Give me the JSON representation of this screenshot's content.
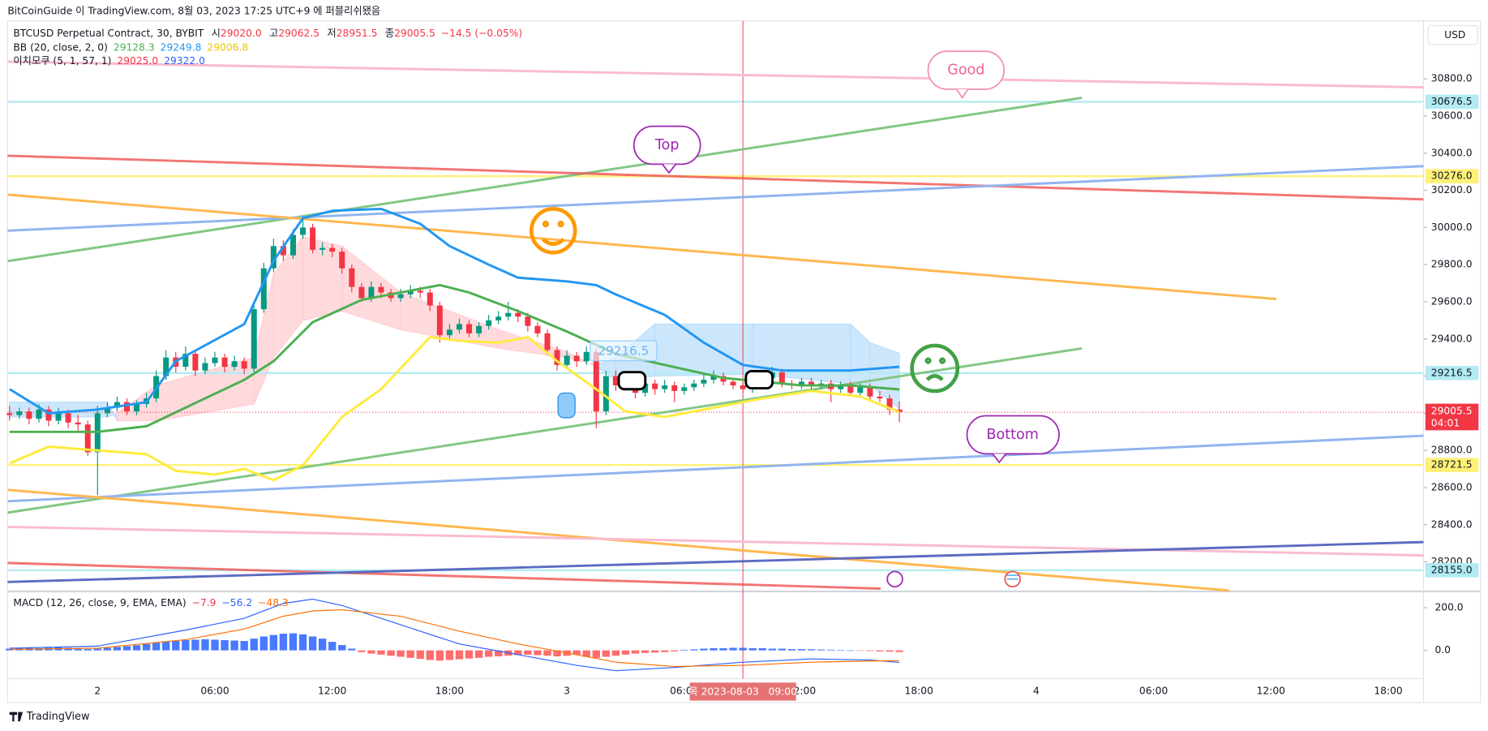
{
  "header": "BitCoinGuide 이 TradingView.com, 8월 03, 2023 17:25 UTC+9 에 퍼블리쉬됐음",
  "currency_button": "USD",
  "branding": "TradingView",
  "annotations": [
    "Good",
    "Top",
    "Bottom",
    "29216.5"
  ],
  "chart_data": {
    "type": "candlestick",
    "symbol": "BTCUSD Perpetual Contract, 30, BYBIT",
    "ohlc_legend": [
      {
        "label": "시",
        "value": "29020.0"
      },
      {
        "label": "고",
        "value": "29062.5"
      },
      {
        "label": "저",
        "value": "28951.5"
      },
      {
        "label": "종",
        "value": "29005.5"
      }
    ],
    "change": "−14.5 (−0.05%)",
    "up_color": "#089981",
    "down_color": "#f23645",
    "xlim": [
      -0.2,
      144.6
    ],
    "xticks": [
      {
        "value": 9,
        "label": "2"
      },
      {
        "value": 21,
        "label": "06:00"
      },
      {
        "value": 33,
        "label": "12:00"
      },
      {
        "value": 45,
        "label": "18:00"
      },
      {
        "value": 57,
        "label": "3"
      },
      {
        "value": 69,
        "label": "06:00"
      },
      {
        "value": 81,
        "label": "12:00"
      },
      {
        "value": 93,
        "label": "18:00"
      },
      {
        "value": 105,
        "label": "4"
      },
      {
        "value": 117,
        "label": "06:00"
      },
      {
        "value": 129,
        "label": "12:00"
      },
      {
        "value": 141,
        "label": "18:00"
      }
    ],
    "ylim": [
      28046,
      31112
    ],
    "yticks": [
      {
        "value": 30800,
        "label": "30800.0"
      },
      {
        "value": 30600,
        "label": "30600.0"
      },
      {
        "value": 30400,
        "label": "30400.0"
      },
      {
        "value": 30200,
        "label": "30200.0"
      },
      {
        "value": 30000,
        "label": "30000.0"
      },
      {
        "value": 29800,
        "label": "29800.0"
      },
      {
        "value": 29600,
        "label": "29600.0"
      },
      {
        "value": 29400,
        "label": "29400.0"
      },
      {
        "value": 29200,
        "label": "29200.0"
      },
      {
        "value": 29000,
        "label": "29000.0"
      },
      {
        "value": 28800,
        "label": "28800.0"
      },
      {
        "value": 28600,
        "label": "28600.0"
      },
      {
        "value": 28400,
        "label": "28400.0"
      },
      {
        "value": 28200,
        "label": "28200.0"
      }
    ],
    "candles": [
      {
        "o": 29000,
        "h": 29040,
        "l": 28960,
        "c": 28990
      },
      {
        "o": 28990,
        "h": 29030,
        "l": 28970,
        "c": 29010
      },
      {
        "o": 29010,
        "h": 29030,
        "l": 28940,
        "c": 28970
      },
      {
        "o": 28970,
        "h": 29050,
        "l": 28950,
        "c": 29020
      },
      {
        "o": 29020,
        "h": 29040,
        "l": 28930,
        "c": 28960
      },
      {
        "o": 28960,
        "h": 29030,
        "l": 28940,
        "c": 29000
      },
      {
        "o": 29000,
        "h": 29020,
        "l": 28920,
        "c": 28950
      },
      {
        "o": 28950,
        "h": 28990,
        "l": 28900,
        "c": 28940
      },
      {
        "o": 28940,
        "h": 28960,
        "l": 28770,
        "c": 28790
      },
      {
        "o": 28790,
        "h": 29040,
        "l": 28560,
        "c": 29000
      },
      {
        "o": 29000,
        "h": 29060,
        "l": 28980,
        "c": 29030
      },
      {
        "o": 29030,
        "h": 29090,
        "l": 29010,
        "c": 29060
      },
      {
        "o": 29060,
        "h": 29080,
        "l": 28990,
        "c": 29010
      },
      {
        "o": 29010,
        "h": 29070,
        "l": 28990,
        "c": 29050
      },
      {
        "o": 29050,
        "h": 29110,
        "l": 29030,
        "c": 29080
      },
      {
        "o": 29080,
        "h": 29230,
        "l": 29060,
        "c": 29200
      },
      {
        "o": 29200,
        "h": 29340,
        "l": 29180,
        "c": 29300
      },
      {
        "o": 29300,
        "h": 29330,
        "l": 29220,
        "c": 29250
      },
      {
        "o": 29250,
        "h": 29360,
        "l": 29230,
        "c": 29320
      },
      {
        "o": 29320,
        "h": 29340,
        "l": 29200,
        "c": 29230
      },
      {
        "o": 29230,
        "h": 29300,
        "l": 29210,
        "c": 29270
      },
      {
        "o": 29270,
        "h": 29330,
        "l": 29250,
        "c": 29300
      },
      {
        "o": 29300,
        "h": 29320,
        "l": 29220,
        "c": 29250
      },
      {
        "o": 29250,
        "h": 29310,
        "l": 29230,
        "c": 29280
      },
      {
        "o": 29280,
        "h": 29300,
        "l": 29210,
        "c": 29240
      },
      {
        "o": 29240,
        "h": 29590,
        "l": 29220,
        "c": 29560
      },
      {
        "o": 29560,
        "h": 29810,
        "l": 29540,
        "c": 29780
      },
      {
        "o": 29780,
        "h": 29940,
        "l": 29760,
        "c": 29900
      },
      {
        "o": 29900,
        "h": 29930,
        "l": 29820,
        "c": 29850
      },
      {
        "o": 29850,
        "h": 29990,
        "l": 29830,
        "c": 29960
      },
      {
        "o": 29960,
        "h": 30060,
        "l": 29940,
        "c": 30000
      },
      {
        "o": 30000,
        "h": 30020,
        "l": 29860,
        "c": 29880
      },
      {
        "o": 29880,
        "h": 29920,
        "l": 29850,
        "c": 29890
      },
      {
        "o": 29890,
        "h": 29910,
        "l": 29840,
        "c": 29870
      },
      {
        "o": 29870,
        "h": 29890,
        "l": 29750,
        "c": 29780
      },
      {
        "o": 29780,
        "h": 29800,
        "l": 29650,
        "c": 29680
      },
      {
        "o": 29680,
        "h": 29700,
        "l": 29600,
        "c": 29620
      },
      {
        "o": 29620,
        "h": 29710,
        "l": 29600,
        "c": 29680
      },
      {
        "o": 29680,
        "h": 29700,
        "l": 29620,
        "c": 29650
      },
      {
        "o": 29650,
        "h": 29670,
        "l": 29600,
        "c": 29620
      },
      {
        "o": 29620,
        "h": 29670,
        "l": 29600,
        "c": 29640
      },
      {
        "o": 29640,
        "h": 29690,
        "l": 29620,
        "c": 29660
      },
      {
        "o": 29660,
        "h": 29680,
        "l": 29620,
        "c": 29650
      },
      {
        "o": 29650,
        "h": 29670,
        "l": 29550,
        "c": 29580
      },
      {
        "o": 29580,
        "h": 29600,
        "l": 29380,
        "c": 29420
      },
      {
        "o": 29420,
        "h": 29480,
        "l": 29400,
        "c": 29450
      },
      {
        "o": 29450,
        "h": 29510,
        "l": 29430,
        "c": 29480
      },
      {
        "o": 29480,
        "h": 29500,
        "l": 29410,
        "c": 29430
      },
      {
        "o": 29430,
        "h": 29490,
        "l": 29410,
        "c": 29470
      },
      {
        "o": 29470,
        "h": 29530,
        "l": 29450,
        "c": 29500
      },
      {
        "o": 29500,
        "h": 29550,
        "l": 29480,
        "c": 29520
      },
      {
        "o": 29520,
        "h": 29600,
        "l": 29500,
        "c": 29540
      },
      {
        "o": 29540,
        "h": 29560,
        "l": 29490,
        "c": 29520
      },
      {
        "o": 29520,
        "h": 29540,
        "l": 29440,
        "c": 29470
      },
      {
        "o": 29470,
        "h": 29490,
        "l": 29410,
        "c": 29430
      },
      {
        "o": 29430,
        "h": 29450,
        "l": 29310,
        "c": 29340
      },
      {
        "o": 29340,
        "h": 29360,
        "l": 29230,
        "c": 29260
      },
      {
        "o": 29260,
        "h": 29340,
        "l": 29240,
        "c": 29310
      },
      {
        "o": 29310,
        "h": 29330,
        "l": 29250,
        "c": 29280
      },
      {
        "o": 29280,
        "h": 29360,
        "l": 29260,
        "c": 29330
      },
      {
        "o": 29330,
        "h": 29350,
        "l": 28920,
        "c": 29010
      },
      {
        "o": 29010,
        "h": 29230,
        "l": 28990,
        "c": 29200
      },
      {
        "o": 29200,
        "h": 29230,
        "l": 29120,
        "c": 29150
      },
      {
        "o": 29150,
        "h": 29220,
        "l": 29130,
        "c": 29190
      },
      {
        "o": 29190,
        "h": 29210,
        "l": 29080,
        "c": 29110
      },
      {
        "o": 29110,
        "h": 29190,
        "l": 29090,
        "c": 29160
      },
      {
        "o": 29160,
        "h": 29180,
        "l": 29100,
        "c": 29130
      },
      {
        "o": 29130,
        "h": 29180,
        "l": 29110,
        "c": 29150
      },
      {
        "o": 29150,
        "h": 29170,
        "l": 29060,
        "c": 29120
      },
      {
        "o": 29120,
        "h": 29160,
        "l": 29100,
        "c": 29140
      },
      {
        "o": 29140,
        "h": 29180,
        "l": 29120,
        "c": 29160
      },
      {
        "o": 29160,
        "h": 29210,
        "l": 29140,
        "c": 29180
      },
      {
        "o": 29180,
        "h": 29230,
        "l": 29160,
        "c": 29200
      },
      {
        "o": 29200,
        "h": 29220,
        "l": 29150,
        "c": 29170
      },
      {
        "o": 29170,
        "h": 29190,
        "l": 29130,
        "c": 29150
      },
      {
        "o": 29150,
        "h": 29170,
        "l": 29110,
        "c": 29130
      },
      {
        "o": 29130,
        "h": 29180,
        "l": 29110,
        "c": 29160
      },
      {
        "o": 29160,
        "h": 29220,
        "l": 29140,
        "c": 29190
      },
      {
        "o": 29190,
        "h": 29250,
        "l": 29170,
        "c": 29220
      },
      {
        "o": 29220,
        "h": 29240,
        "l": 29140,
        "c": 29160
      },
      {
        "o": 29160,
        "h": 29180,
        "l": 29130,
        "c": 29150
      },
      {
        "o": 29150,
        "h": 29190,
        "l": 29130,
        "c": 29170
      },
      {
        "o": 29170,
        "h": 29190,
        "l": 29130,
        "c": 29150
      },
      {
        "o": 29150,
        "h": 29180,
        "l": 29130,
        "c": 29160
      },
      {
        "o": 29160,
        "h": 29180,
        "l": 29060,
        "c": 29130
      },
      {
        "o": 29130,
        "h": 29170,
        "l": 29110,
        "c": 29150
      },
      {
        "o": 29150,
        "h": 29170,
        "l": 29090,
        "c": 29110
      },
      {
        "o": 29110,
        "h": 29160,
        "l": 29090,
        "c": 29140
      },
      {
        "o": 29140,
        "h": 29160,
        "l": 29070,
        "c": 29090
      },
      {
        "o": 29090,
        "h": 29120,
        "l": 29060,
        "c": 29080
      },
      {
        "o": 29080,
        "h": 29100,
        "l": 28990,
        "c": 29020
      },
      {
        "o": 29020,
        "h": 29062.5,
        "l": 28951.5,
        "c": 29005.5
      }
    ],
    "bb_legend": {
      "title": "BB (20, close, 2, 0)",
      "readings": [
        {
          "text": "29128.3",
          "color": "#4caf50"
        },
        {
          "text": "29249.8",
          "color": "#2196f3"
        },
        {
          "text": "29006.8",
          "color": "#e6c700"
        }
      ]
    },
    "ichimoku_legend": {
      "title": "이치모쿠 (5, 1, 57, 1)",
      "readings": [
        {
          "text": "29025.0",
          "color": "#f23645"
        },
        {
          "text": "29322.0",
          "color": "#2962ff"
        }
      ]
    },
    "ichimoku": {
      "up_color": "#bbdefb",
      "down_color": "#ffcdd2",
      "x": [
        0,
        10,
        11,
        15,
        25,
        27,
        30,
        34,
        40,
        50,
        57,
        60,
        62,
        66,
        76,
        86,
        88,
        91
      ],
      "span_a": [
        29060,
        29060,
        28960,
        28960,
        29050,
        29300,
        29500,
        29550,
        29450,
        29350,
        29300,
        29260,
        29300,
        29480,
        29480,
        29480,
        29380,
        29322
      ],
      "span_b": [
        28980,
        28980,
        29000,
        29150,
        29300,
        29750,
        29950,
        29900,
        29650,
        29450,
        29330,
        29250,
        29180,
        29200,
        29210,
        29160,
        29150,
        29025
      ]
    },
    "overlays": [
      {
        "color": "#2196f3",
        "x": [
          0,
          4,
          9,
          14,
          17,
          24,
          27,
          30,
          33,
          38,
          42,
          45,
          49,
          52,
          57,
          60,
          62,
          67,
          71,
          75,
          79,
          86,
          91
        ],
        "values": [
          29130,
          29000,
          29020,
          29060,
          29280,
          29480,
          29820,
          30050,
          30090,
          30100,
          30020,
          29900,
          29800,
          29730,
          29710,
          29690,
          29640,
          29530,
          29380,
          29260,
          29230,
          29230,
          29249.8
        ]
      },
      {
        "color": "#4caf50",
        "x": [
          0,
          9,
          14,
          18,
          24,
          27,
          31,
          36,
          42,
          44,
          47,
          52,
          57,
          62,
          67,
          73,
          77,
          81,
          86,
          91
        ],
        "values": [
          28900,
          28900,
          28930,
          29030,
          29180,
          29280,
          29490,
          29610,
          29670,
          29690,
          29650,
          29550,
          29440,
          29320,
          29260,
          29190,
          29170,
          29150,
          29150,
          29128.3
        ]
      },
      {
        "color": "#ffeb3b",
        "x": [
          0,
          4,
          9,
          14,
          17,
          21,
          24,
          27,
          30,
          34,
          38,
          43,
          46,
          50,
          53,
          56,
          60,
          63,
          67,
          71,
          77,
          82,
          87,
          91
        ],
        "values": [
          28730,
          28820,
          28800,
          28780,
          28690,
          28670,
          28700,
          28640,
          28720,
          28980,
          29130,
          29410,
          29390,
          29380,
          29410,
          29280,
          29130,
          29010,
          28980,
          29020,
          29080,
          29120,
          29090,
          29006.8
        ]
      }
    ],
    "levels": [
      {
        "value": 30676.5,
        "label": "30676.5",
        "color": "#b2ebf2"
      },
      {
        "value": 30276,
        "label": "30276.0",
        "color": "#fff176"
      },
      {
        "value": 29216.5,
        "label": "29216.5",
        "color": "#b2ebf2"
      },
      {
        "value": 28721.5,
        "label": "28721.5",
        "color": "#fff176"
      },
      {
        "value": 28155,
        "label": "28155.0",
        "color": "#b2ebf2"
      }
    ],
    "last_price": {
      "value": 29005.5,
      "label": "29005.5",
      "countdown": "04:01",
      "color": "#f23645"
    },
    "crosshair": {
      "x": 75,
      "label": "목 2023-08-03   09:00",
      "color": "#f23645"
    },
    "macd": {
      "title": "MACD (12, 26, close, 9, EMA, EMA)",
      "readings": [
        {
          "text": "−7.9",
          "color": "#f23645"
        },
        {
          "text": "−56.2",
          "color": "#2962ff"
        },
        {
          "text": "−48.3",
          "color": "#ff6d00"
        }
      ],
      "ylim": [
        -133,
        267
      ],
      "yticks": [
        {
          "value": 200,
          "label": "200.0"
        },
        {
          "value": 0,
          "label": "0.0"
        }
      ],
      "up_color": "#2962ff",
      "down_color": "#ff5252",
      "histogram": [
        8,
        10,
        12,
        10,
        12,
        14,
        12,
        10,
        6,
        8,
        12,
        16,
        20,
        24,
        30,
        36,
        42,
        45,
        48,
        50,
        52,
        50,
        48,
        46,
        44,
        55,
        65,
        72,
        78,
        80,
        75,
        65,
        55,
        40,
        25,
        8,
        -8,
        -15,
        -20,
        -25,
        -30,
        -35,
        -40,
        -45,
        -48,
        -45,
        -42,
        -38,
        -35,
        -30,
        -28,
        -25,
        -22,
        -20,
        -22,
        -25,
        -28,
        -25,
        -20,
        -30,
        -35,
        -30,
        -25,
        -20,
        -15,
        -12,
        -10,
        -8,
        -5,
        3,
        5,
        8,
        10,
        10,
        12,
        12,
        10,
        10,
        8,
        8,
        6,
        6,
        5,
        4,
        3,
        2,
        0,
        -2,
        -3,
        -5,
        -6,
        -7.9
      ],
      "lines": [
        {
          "color": "#2962ff",
          "x": [
            0,
            9,
            18,
            24,
            28,
            31,
            34,
            40,
            46,
            52,
            58,
            62,
            68,
            75,
            82,
            88,
            91
          ],
          "values": [
            10,
            20,
            95,
            150,
            220,
            240,
            210,
            120,
            30,
            -20,
            -70,
            -95,
            -80,
            -55,
            -40,
            -45,
            -56.2
          ]
        },
        {
          "color": "#ff6d00",
          "x": [
            0,
            9,
            18,
            24,
            28,
            31,
            34,
            40,
            46,
            52,
            58,
            62,
            68,
            75,
            82,
            88,
            91
          ],
          "values": [
            5,
            10,
            50,
            100,
            160,
            185,
            190,
            160,
            90,
            30,
            -20,
            -55,
            -75,
            -70,
            -55,
            -50,
            -48.3
          ]
        }
      ]
    }
  }
}
